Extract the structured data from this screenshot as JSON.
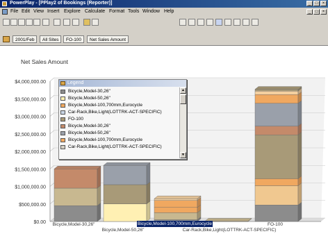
{
  "window": {
    "title": "PowerPlay - [PPlay2 of Bookings (Reporter)]",
    "controls": [
      "_",
      "□",
      "×"
    ],
    "mdi_controls": [
      "_",
      "□",
      "×"
    ]
  },
  "menu": {
    "items": [
      "File",
      "Edit",
      "View",
      "Insert",
      "Explore",
      "Calculate",
      "Format",
      "Tools",
      "Window",
      "Help"
    ]
  },
  "toolbar": {
    "left_buttons": [
      "new-icon",
      "open-icon",
      "save-icon",
      "print-icon",
      "print-preview-icon",
      "undo-icon",
      "cut-icon",
      "copy-icon",
      "paste-icon",
      "swap-rows-columns-icon",
      "find-icon"
    ],
    "right_buttons": [
      "crosstab-icon",
      "indented-crosstab-icon",
      "pie-chart-icon",
      "bar-chart-icon",
      "stacked-bar-icon",
      "clustered-bar-icon",
      "line-chart-icon",
      "area-chart-icon",
      "3d-bar-icon"
    ]
  },
  "dimension_line": {
    "items": [
      "2001/Feb",
      "All Sites",
      "FO-100",
      "Net Sales Amount"
    ]
  },
  "legend": {
    "title": "Legend",
    "items": [
      {
        "label": "Bicycle,Model-30,26\"",
        "color": "#8c8c8c"
      },
      {
        "label": "Bicycle,Model-50,26\"",
        "color": "#fff0b3"
      },
      {
        "label": "Bicycle,Model-100,700mm,Eurocycle",
        "color": "#f0a860"
      },
      {
        "label": "Car-Rack,Bike,Light(LOTTRK-ACT-SPECIFIC)",
        "color": "#c8d4e4"
      },
      {
        "label": "FO-100",
        "color": "#a89a78"
      },
      {
        "label": "Bicycle,Model-30,26\"",
        "color": "#c48a6a"
      },
      {
        "label": "Bicycle,Model-50,26\"",
        "color": "#9aa0aa"
      },
      {
        "label": "Bicycle,Model-100,700mm,Eurocycle",
        "color": "#f0a860"
      },
      {
        "label": "Car-Rack,Bike,Light(LOTTRK-ACT-SPECIFIC)",
        "color": "#d4cfc4"
      }
    ]
  },
  "tooltip": "Bicycle,Model-100,700mm,Eurocycle",
  "chart_data": {
    "type": "bar",
    "stacked": true,
    "title": "Net Sales Amount",
    "ylim": [
      0,
      4000000
    ],
    "yticks": [
      "$0.00",
      "$500,000.00",
      "$1,000,000.00",
      "$1,500,000.00",
      "$2,000,000.00",
      "$2,500,000.00",
      "$3,000,000.00",
      "$3,500,000.00",
      "$4,000,000.00"
    ],
    "grid": true,
    "categories": [
      "Bicycle,Model-30,26\"",
      "Bicycle,Model-50,26\"",
      "Bicycle,Model-100,700mm,Eurocycle",
      "Car-Rack,Bike,Light(LOTTRK-ACT-SPECIFIC)",
      "FO-100"
    ],
    "series": [
      {
        "color": "#8c8c8c",
        "values": [
          450000,
          0,
          50000,
          0,
          470000
        ]
      },
      {
        "color": "#fff0b3",
        "values": [
          0,
          500000,
          0,
          0,
          0
        ]
      },
      {
        "color": "#f0c890",
        "values": [
          0,
          0,
          0,
          0,
          550000
        ]
      },
      {
        "color": "#c8b890",
        "values": [
          500000,
          0,
          200000,
          10000,
          0
        ]
      },
      {
        "color": "#a89a78",
        "values": [
          0,
          550000,
          0,
          0,
          0
        ]
      },
      {
        "color": "#f0a860",
        "values": [
          0,
          0,
          150000,
          0,
          200000
        ]
      },
      {
        "color": "#a89a78",
        "values": [
          0,
          0,
          0,
          0,
          1250000
        ]
      },
      {
        "color": "#c48a6a",
        "values": [
          550000,
          0,
          0,
          0,
          250000
        ]
      },
      {
        "color": "#9aa0aa",
        "values": [
          0,
          550000,
          0,
          0,
          650000
        ]
      },
      {
        "color": "#f0a860",
        "values": [
          0,
          0,
          200000,
          0,
          250000
        ]
      },
      {
        "color": "#f4d0a0",
        "values": [
          0,
          0,
          50000,
          0,
          100000
        ]
      },
      {
        "color": "#a89a78",
        "values": [
          0,
          0,
          0,
          0,
          50000
        ]
      }
    ]
  }
}
